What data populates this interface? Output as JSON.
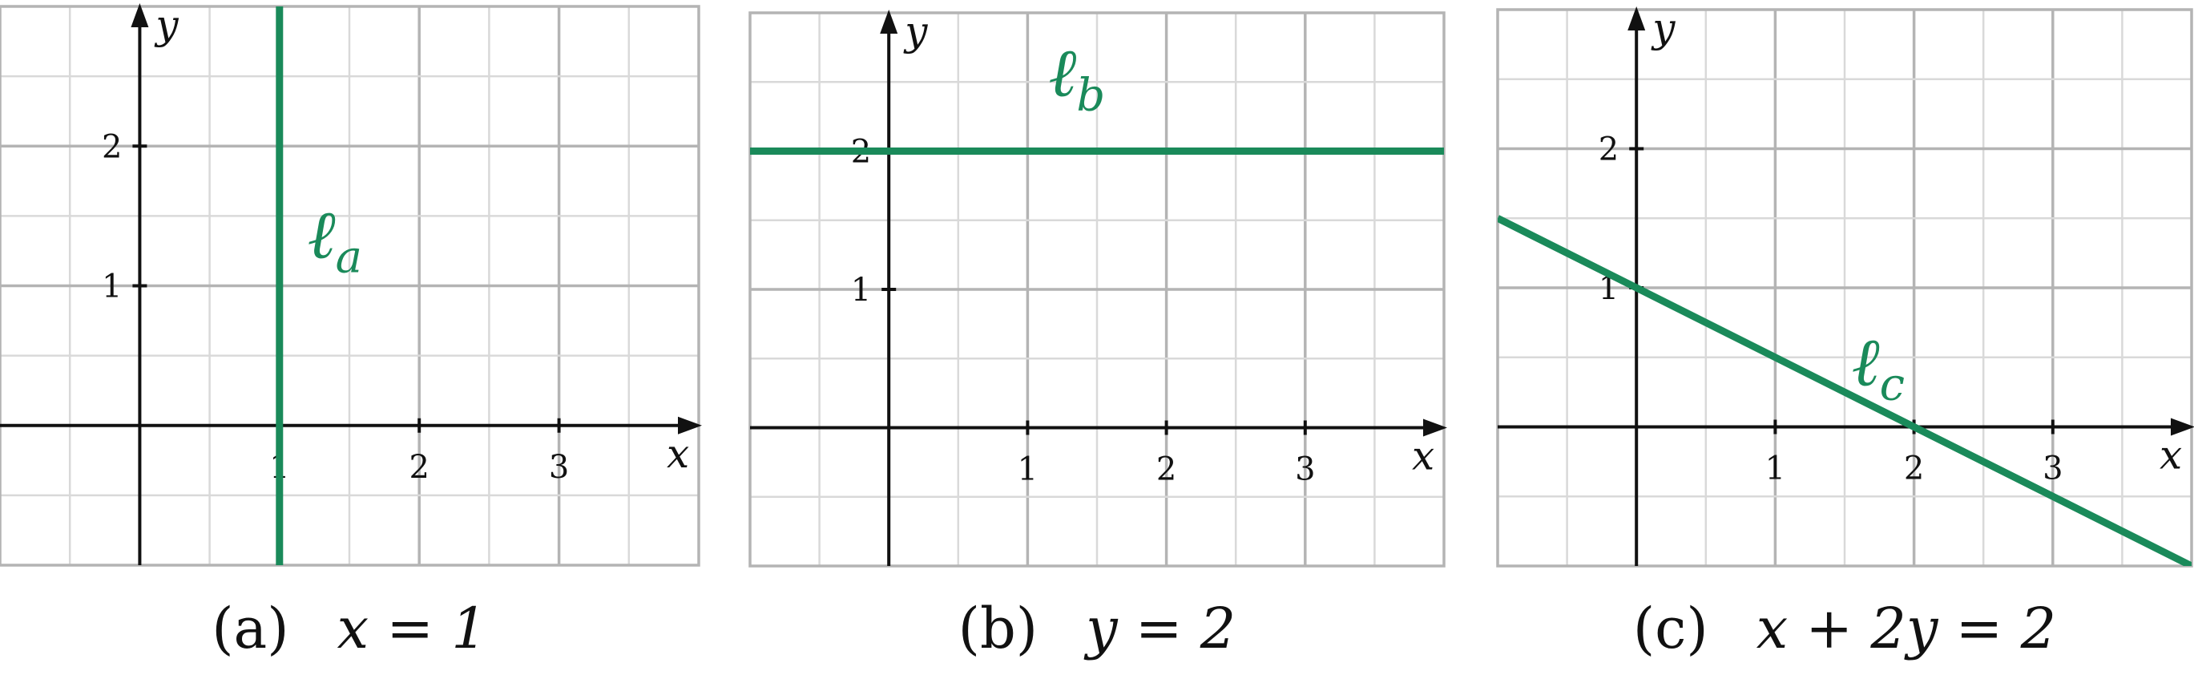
{
  "line_color": "#1a8a5a",
  "chart_data": [
    {
      "type": "line",
      "caption": {
        "tag": "(a)",
        "equation": "x = 1"
      },
      "xlabel": "x",
      "ylabel": "y",
      "xlim": [
        -1,
        4
      ],
      "ylim": [
        -1,
        3
      ],
      "grid": true,
      "xticks": [
        1,
        2,
        3
      ],
      "yticks": [
        1,
        2
      ],
      "line": {
        "name": "ℓ",
        "subscript": "a",
        "kind": "vertical",
        "x": 1,
        "label_at": [
          1.2,
          1.2
        ]
      }
    },
    {
      "type": "line",
      "caption": {
        "tag": "(b)",
        "equation": "y = 2"
      },
      "xlabel": "x",
      "ylabel": "y",
      "xlim": [
        -1,
        4
      ],
      "ylim": [
        -1,
        3
      ],
      "grid": true,
      "xticks": [
        1,
        2,
        3
      ],
      "yticks": [
        1,
        2
      ],
      "line": {
        "name": "ℓ",
        "subscript": "b",
        "kind": "horizontal",
        "y": 2,
        "label_at": [
          1.15,
          2.4
        ]
      }
    },
    {
      "type": "line",
      "caption": {
        "tag": "(c)",
        "equation": "x + 2y = 2"
      },
      "xlabel": "x",
      "ylabel": "y",
      "xlim": [
        -1,
        4
      ],
      "ylim": [
        -1,
        3
      ],
      "grid": true,
      "xticks": [
        1,
        2,
        3
      ],
      "yticks": [
        1,
        2
      ],
      "line": {
        "name": "ℓ",
        "subscript": "c",
        "kind": "general",
        "a": 1,
        "b": 2,
        "c": 2,
        "label_at": [
          1.55,
          0.3
        ]
      }
    }
  ]
}
